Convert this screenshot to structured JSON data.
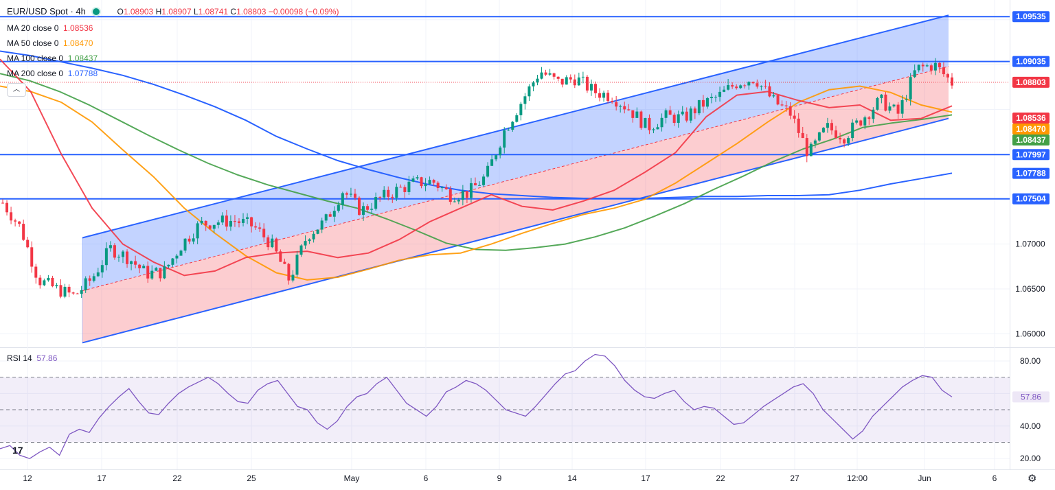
{
  "header": {
    "title": "EUR/USD Spot · 4h",
    "o_label": "O",
    "o": "1.08903",
    "h_label": "H",
    "h": "1.08907",
    "l_label": "L",
    "l": "1.08741",
    "c_label": "C",
    "c": "1.08803",
    "change": "−0.00098 (−0.09%)"
  },
  "ma_legend": [
    {
      "label": "MA 20 close 0",
      "value": "1.08536",
      "color": "#f23645"
    },
    {
      "label": "MA 50 close 0",
      "value": "1.08470",
      "color": "#ff9800"
    },
    {
      "label": "MA 100 close 0",
      "value": "1.08437",
      "color": "#43a047"
    },
    {
      "label": "MA 200 close 0",
      "value": "1.07788",
      "color": "#2962ff"
    }
  ],
  "rsi_legend": {
    "label": "RSI 14",
    "value": "57.86",
    "color": "#7e57c2"
  },
  "icons": {
    "collapse": "chevron-up-icon",
    "logo": "tradingview-logo-icon",
    "settings": "gear-icon",
    "status": "market-open-dot-icon"
  },
  "collapse_glyph": "︿",
  "logo_text": "17",
  "gear_glyph": "⚙",
  "chart_data": [
    {
      "type": "candlestick",
      "title": "EUR/USD Spot · 4h",
      "ylim": [
        1.0585,
        1.0972
      ],
      "price_ticks": [
        "1.07000",
        "1.06500",
        "1.06000"
      ],
      "x_ticks": [
        "12",
        "17",
        "22",
        "25",
        "May",
        "6",
        "9",
        "14",
        "17",
        "22",
        "27",
        "12:00",
        "Jun",
        "6"
      ],
      "horizontal_levels": [
        {
          "value": 1.09535,
          "label": "1.09535",
          "color": "#2962ff"
        },
        {
          "value": 1.09035,
          "label": "1.09035",
          "color": "#2962ff"
        },
        {
          "value": 1.07997,
          "label": "1.07997",
          "color": "#2962ff"
        },
        {
          "value": 1.07504,
          "label": "1.07504",
          "color": "#2962ff"
        }
      ],
      "last_price": {
        "value": 1.08803,
        "label": "1.08803",
        "color": "#f23645"
      },
      "ma_values": [
        {
          "name": "MA 20",
          "value": 1.08536,
          "label": "1.08536",
          "color": "#f23645"
        },
        {
          "name": "MA 50",
          "value": 1.0847,
          "label": "1.08470",
          "color": "#ff9800"
        },
        {
          "name": "MA 100",
          "value": 1.08437,
          "label": "1.08437",
          "color": "#43a047"
        },
        {
          "name": "MA 200",
          "value": 1.07788,
          "label": "1.07788",
          "color": "#2962ff"
        }
      ],
      "channel": {
        "upper_start": 1.0707,
        "upper_end": 1.0955,
        "lower_start": 1.059,
        "lower_end": 1.084,
        "mid_start": 1.0648,
        "mid_end": 1.0898
      },
      "ma200_path": [
        1.0915,
        1.091,
        1.0903,
        1.0896,
        1.0888,
        1.0878,
        1.0866,
        1.0853,
        1.0838,
        1.082,
        1.0806,
        1.0793,
        1.0783,
        1.0774,
        1.0766,
        1.076,
        1.0756,
        1.0754,
        1.0752,
        1.0751,
        1.0751,
        1.0751,
        1.0752,
        1.0753,
        1.0753,
        1.0754,
        1.0754,
        1.0755,
        1.076,
        1.0767,
        1.0773,
        1.0779
      ],
      "ma100_path": [
        1.089,
        1.0882,
        1.087,
        1.0855,
        1.0838,
        1.0821,
        1.0805,
        1.079,
        1.0777,
        1.0766,
        1.0757,
        1.0748,
        1.074,
        1.0728,
        1.0715,
        1.0701,
        1.0694,
        1.0693,
        1.0696,
        1.07,
        1.0708,
        1.0718,
        1.0731,
        1.0745,
        1.0761,
        1.0776,
        1.0792,
        1.0806,
        1.0817,
        1.083,
        1.0835,
        1.0839,
        1.0844
      ],
      "ma50_path": [
        1.0876,
        1.087,
        1.0858,
        1.0836,
        1.0805,
        1.0775,
        1.074,
        1.0712,
        1.0687,
        1.0668,
        1.066,
        1.0663,
        1.0672,
        1.0682,
        1.0688,
        1.069,
        1.07,
        1.0712,
        1.0723,
        1.0733,
        1.074,
        1.075,
        1.0768,
        1.079,
        1.0812,
        1.0836,
        1.0858,
        1.0872,
        1.0876,
        1.0869,
        1.0855,
        1.0847
      ],
      "ma20_path": [
        1.0906,
        1.087,
        1.08,
        1.074,
        1.07,
        1.068,
        1.0665,
        1.067,
        1.0685,
        1.069,
        1.0692,
        1.0685,
        1.069,
        1.0705,
        1.0725,
        1.074,
        1.0755,
        1.0742,
        1.0738,
        1.0748,
        1.076,
        1.078,
        1.0802,
        1.0842,
        1.0866,
        1.087,
        1.086,
        1.0852,
        1.0855,
        1.0838,
        1.084,
        1.0854
      ],
      "candles_approx": [
        1.0746,
        1.0718,
        1.066,
        1.065,
        1.0642,
        1.0662,
        1.0695,
        1.0685,
        1.0667,
        1.0669,
        1.07,
        1.0722,
        1.0725,
        1.0726,
        1.072,
        1.07,
        1.066,
        1.071,
        1.0725,
        1.076,
        1.0737,
        1.075,
        1.076,
        1.0768,
        1.077,
        1.0755,
        1.0757,
        1.0776,
        1.0826,
        1.086,
        1.0893,
        1.088,
        1.0885,
        1.087,
        1.0865,
        1.085,
        1.083,
        1.0842,
        1.084,
        1.0855,
        1.0865,
        1.088,
        1.0885,
        1.086,
        1.0845,
        1.08,
        1.083,
        1.082,
        1.084,
        1.086,
        1.0845,
        1.0895,
        1.09,
        1.088
      ]
    },
    {
      "type": "line",
      "title": "RSI 14",
      "ylim": [
        15,
        88
      ],
      "y_ticks": [
        "80.00",
        "40.00",
        "20.00"
      ],
      "bands": {
        "upper": 70,
        "middle": 50,
        "lower": 30
      },
      "current": {
        "value": 57.86,
        "label": "57.86"
      },
      "values": [
        26,
        28,
        22,
        20,
        24,
        27,
        22,
        35,
        38,
        36,
        45,
        52,
        58,
        63,
        55,
        48,
        47,
        54,
        60,
        64,
        67,
        70,
        66,
        60,
        55,
        54,
        62,
        66,
        68,
        60,
        52,
        50,
        42,
        38,
        43,
        52,
        58,
        60,
        66,
        70,
        62,
        54,
        50,
        46,
        52,
        61,
        64,
        68,
        66,
        62,
        56,
        50,
        48,
        46,
        52,
        59,
        66,
        72,
        74,
        80,
        84,
        83,
        77,
        68,
        62,
        58,
        57,
        60,
        62,
        55,
        50,
        52,
        51,
        46,
        41,
        42,
        47,
        52,
        56,
        60,
        64,
        66,
        60,
        50,
        44,
        38,
        32,
        37,
        46,
        52,
        58,
        64,
        68,
        71,
        70,
        62,
        57.86
      ]
    }
  ]
}
